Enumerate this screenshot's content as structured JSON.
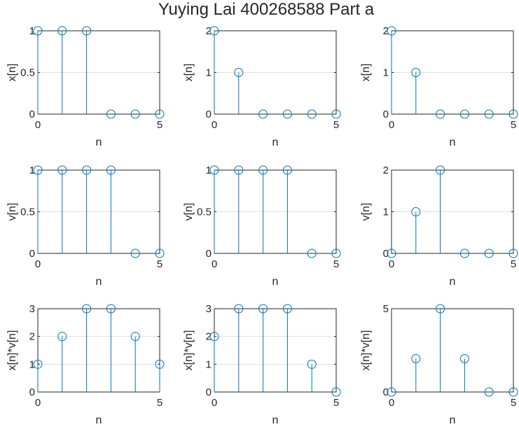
{
  "figure_title": "Yuying Lai 400268588 Part a",
  "colors": {
    "stem": "#0072bd",
    "axes": "#262626",
    "grid": "#dfdfdf",
    "background": "#ffffff"
  },
  "chart_data": [
    {
      "type": "stem",
      "x": [
        0,
        1,
        2,
        3,
        4,
        5
      ],
      "y": [
        1,
        1,
        1,
        0,
        0,
        0
      ],
      "xlabel": "n",
      "ylabel": "x[n]",
      "xlim": [
        0,
        5
      ],
      "ylim": [
        0,
        1
      ],
      "xticks": [
        "0",
        "5"
      ],
      "yticks": [
        "0",
        "0.5",
        "1"
      ],
      "grid": "y"
    },
    {
      "type": "stem",
      "x": [
        0,
        1,
        2,
        3,
        4,
        5
      ],
      "y": [
        2,
        1,
        0,
        0,
        0,
        0
      ],
      "xlabel": "n",
      "ylabel": "x[n]",
      "xlim": [
        0,
        5
      ],
      "ylim": [
        0,
        2
      ],
      "xticks": [
        "0",
        "5"
      ],
      "yticks": [
        "0",
        "1",
        "2"
      ],
      "grid": "y"
    },
    {
      "type": "stem",
      "x": [
        0,
        1,
        2,
        3,
        4,
        5
      ],
      "y": [
        2,
        1,
        0,
        0,
        0,
        0
      ],
      "xlabel": "n",
      "ylabel": "x[n]",
      "xlim": [
        0,
        5
      ],
      "ylim": [
        0,
        2
      ],
      "xticks": [
        "0",
        "5"
      ],
      "yticks": [
        "0",
        "1",
        "2"
      ],
      "grid": "y"
    },
    {
      "type": "stem",
      "x": [
        0,
        1,
        2,
        3,
        4,
        5
      ],
      "y": [
        1,
        1,
        1,
        1,
        0,
        0
      ],
      "xlabel": "n",
      "ylabel": "v[n]",
      "xlim": [
        0,
        5
      ],
      "ylim": [
        0,
        1
      ],
      "xticks": [
        "0",
        "5"
      ],
      "yticks": [
        "0",
        "0.5",
        "1"
      ],
      "grid": "y"
    },
    {
      "type": "stem",
      "x": [
        0,
        1,
        2,
        3,
        4,
        5
      ],
      "y": [
        1,
        1,
        1,
        1,
        0,
        0
      ],
      "xlabel": "n",
      "ylabel": "v[n]",
      "xlim": [
        0,
        5
      ],
      "ylim": [
        0,
        1
      ],
      "xticks": [
        "0",
        "5"
      ],
      "yticks": [
        "0",
        "0.5",
        "1"
      ],
      "grid": "y"
    },
    {
      "type": "stem",
      "x": [
        0,
        1,
        2,
        3,
        4,
        5
      ],
      "y": [
        0,
        1,
        2,
        0,
        0,
        0
      ],
      "xlabel": "n",
      "ylabel": "v[n]",
      "xlim": [
        0,
        5
      ],
      "ylim": [
        0,
        2
      ],
      "xticks": [
        "0",
        "5"
      ],
      "yticks": [
        "0",
        "1",
        "2"
      ],
      "grid": "y"
    },
    {
      "type": "stem",
      "x": [
        0,
        1,
        2,
        3,
        4,
        5
      ],
      "y": [
        1,
        2,
        3,
        3,
        2,
        1
      ],
      "xlabel": "n",
      "ylabel": "x[n]*v[n]",
      "xlim": [
        0,
        5
      ],
      "ylim": [
        0,
        3
      ],
      "xticks": [
        "0",
        "5"
      ],
      "yticks": [
        "0",
        "1",
        "2",
        "3"
      ],
      "grid": "y"
    },
    {
      "type": "stem",
      "x": [
        0,
        1,
        2,
        3,
        4,
        5
      ],
      "y": [
        2,
        3,
        3,
        3,
        1,
        0
      ],
      "xlabel": "n",
      "ylabel": "x[n]*v[n]",
      "xlim": [
        0,
        5
      ],
      "ylim": [
        0,
        3
      ],
      "xticks": [
        "0",
        "5"
      ],
      "yticks": [
        "0",
        "1",
        "2",
        "3"
      ],
      "grid": "y"
    },
    {
      "type": "stem",
      "x": [
        0,
        1,
        2,
        3,
        4,
        5
      ],
      "y": [
        0,
        2,
        5,
        2,
        0,
        0
      ],
      "xlabel": "n",
      "ylabel": "x[n]*v[n]",
      "xlim": [
        0,
        5
      ],
      "ylim": [
        0,
        5
      ],
      "xticks": [
        "0",
        "5"
      ],
      "yticks": [
        "0",
        "5"
      ],
      "grid": "y"
    }
  ]
}
